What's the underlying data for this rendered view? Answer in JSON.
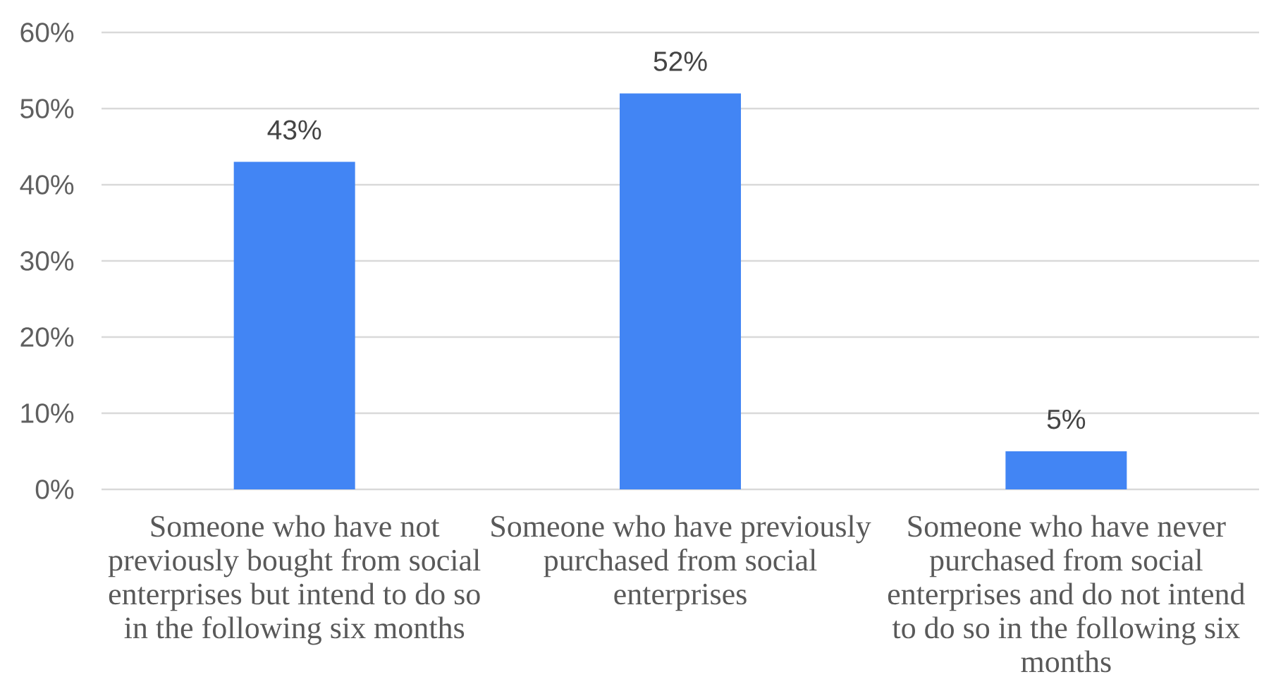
{
  "chart_data": {
    "type": "bar",
    "categories": [
      "Someone who have not previously bought from social enterprises but intend to do so in the following six months",
      "Someone who have previously purchased from social enterprises",
      "Someone who have never purchased from social enterprises and do not intend to do so in the following six months"
    ],
    "values": [
      43,
      52,
      5
    ],
    "color": "#4285f4",
    "value_labels": [
      "43%",
      "52%",
      "5%"
    ],
    "ylim": [
      0,
      60
    ],
    "yticks": [
      {
        "value": 0,
        "label": "0%"
      },
      {
        "value": 10,
        "label": "10%"
      },
      {
        "value": 20,
        "label": "20%"
      },
      {
        "value": 30,
        "label": "30%"
      },
      {
        "value": 40,
        "label": "40%"
      },
      {
        "value": 50,
        "label": "50%"
      },
      {
        "value": 60,
        "label": "60%"
      }
    ],
    "grid": "y"
  }
}
